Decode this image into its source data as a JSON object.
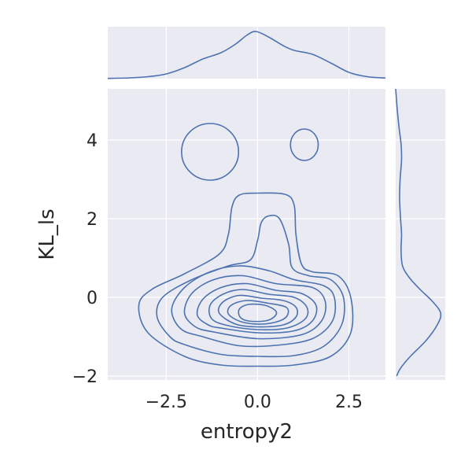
{
  "chart_data": {
    "type": "jointplot-kde",
    "xlabel": "entropy2",
    "ylabel": "KL_ls",
    "xlim": [
      -4.1,
      3.5
    ],
    "ylim": [
      -2.1,
      5.3
    ],
    "grid": true,
    "x_ticks": [
      -2.5,
      0.0,
      2.5
    ],
    "x_tick_labels": [
      "−2.5",
      "0.0",
      "2.5"
    ],
    "y_ticks": [
      -2,
      0,
      2,
      4
    ],
    "y_tick_labels": [
      "−2",
      "0",
      "2",
      "4"
    ],
    "colors": {
      "line": "#4c72b0",
      "panel": "#eaeaf2",
      "grid": "#ffffff"
    },
    "main_contours": [
      {
        "name": "level-1",
        "points": [
          [
            -2.0,
            -1.5
          ],
          [
            -1.0,
            -1.72
          ],
          [
            0.0,
            -1.75
          ],
          [
            1.0,
            -1.72
          ],
          [
            2.0,
            -1.5
          ],
          [
            2.55,
            -0.9
          ],
          [
            2.55,
            0.0
          ],
          [
            2.2,
            0.55
          ],
          [
            1.5,
            0.65
          ],
          [
            1.2,
            0.85
          ],
          [
            1.05,
            1.6
          ],
          [
            1.0,
            2.35
          ],
          [
            0.75,
            2.62
          ],
          [
            0.0,
            2.65
          ],
          [
            -0.5,
            2.6
          ],
          [
            -0.7,
            2.3
          ],
          [
            -0.8,
            1.6
          ],
          [
            -1.05,
            1.1
          ],
          [
            -2.0,
            0.6
          ],
          [
            -2.9,
            0.2
          ],
          [
            -3.25,
            -0.2
          ],
          [
            -3.0,
            -0.9
          ],
          [
            -2.0,
            -1.5
          ]
        ]
      },
      {
        "name": "level-2",
        "points": [
          [
            -2.0,
            -1.2
          ],
          [
            -1.0,
            -1.45
          ],
          [
            0.0,
            -1.5
          ],
          [
            1.0,
            -1.48
          ],
          [
            1.8,
            -1.25
          ],
          [
            2.3,
            -0.7
          ],
          [
            2.35,
            0.0
          ],
          [
            2.0,
            0.45
          ],
          [
            1.4,
            0.55
          ],
          [
            0.95,
            0.75
          ],
          [
            0.85,
            1.35
          ],
          [
            0.6,
            2.0
          ],
          [
            0.3,
            2.07
          ],
          [
            0.1,
            1.9
          ],
          [
            0.0,
            1.45
          ],
          [
            -0.2,
            0.95
          ],
          [
            -0.8,
            0.8
          ],
          [
            -1.8,
            0.45
          ],
          [
            -2.6,
            0.0
          ],
          [
            -2.75,
            -0.5
          ],
          [
            -2.4,
            -1.0
          ],
          [
            -2.0,
            -1.2
          ]
        ]
      },
      {
        "name": "level-3",
        "points": [
          [
            -1.5,
            -1.0
          ],
          [
            -0.5,
            -1.23
          ],
          [
            0.5,
            -1.22
          ],
          [
            1.5,
            -1.05
          ],
          [
            2.05,
            -0.6
          ],
          [
            2.1,
            0.0
          ],
          [
            1.8,
            0.3
          ],
          [
            1.0,
            0.45
          ],
          [
            0.3,
            0.68
          ],
          [
            -0.5,
            0.8
          ],
          [
            -1.3,
            0.65
          ],
          [
            -2.0,
            0.25
          ],
          [
            -2.35,
            -0.3
          ],
          [
            -2.1,
            -0.8
          ],
          [
            -1.5,
            -1.0
          ]
        ]
      },
      {
        "name": "level-4",
        "points": [
          [
            -1.2,
            -0.88
          ],
          [
            0.0,
            -1.05
          ],
          [
            1.2,
            -0.95
          ],
          [
            1.75,
            -0.6
          ],
          [
            1.85,
            -0.1
          ],
          [
            1.5,
            0.25
          ],
          [
            0.5,
            0.35
          ],
          [
            -0.4,
            0.55
          ],
          [
            -1.2,
            0.45
          ],
          [
            -1.8,
            0.1
          ],
          [
            -2.0,
            -0.4
          ],
          [
            -1.7,
            -0.75
          ],
          [
            -1.2,
            -0.88
          ]
        ]
      },
      {
        "name": "level-5",
        "points": [
          [
            -1.0,
            -0.78
          ],
          [
            0.0,
            -0.9
          ],
          [
            1.0,
            -0.85
          ],
          [
            1.5,
            -0.6
          ],
          [
            1.6,
            -0.2
          ],
          [
            1.2,
            0.1
          ],
          [
            0.5,
            0.18
          ],
          [
            -0.3,
            0.35
          ],
          [
            -1.0,
            0.25
          ],
          [
            -1.5,
            -0.05
          ],
          [
            -1.65,
            -0.45
          ],
          [
            -1.35,
            -0.7
          ],
          [
            -1.0,
            -0.78
          ]
        ]
      },
      {
        "name": "level-6",
        "points": [
          [
            -0.8,
            -0.72
          ],
          [
            0.0,
            -0.82
          ],
          [
            0.8,
            -0.78
          ],
          [
            1.3,
            -0.55
          ],
          [
            1.35,
            -0.25
          ],
          [
            1.0,
            0.0
          ],
          [
            0.3,
            0.08
          ],
          [
            -0.4,
            0.2
          ],
          [
            -0.95,
            0.08
          ],
          [
            -1.3,
            -0.2
          ],
          [
            -1.25,
            -0.55
          ],
          [
            -0.8,
            -0.72
          ]
        ]
      },
      {
        "name": "level-7",
        "points": [
          [
            -0.6,
            -0.68
          ],
          [
            0.0,
            -0.75
          ],
          [
            0.7,
            -0.7
          ],
          [
            1.05,
            -0.5
          ],
          [
            1.05,
            -0.25
          ],
          [
            0.7,
            -0.08
          ],
          [
            0.1,
            -0.02
          ],
          [
            -0.5,
            0.05
          ],
          [
            -0.95,
            -0.12
          ],
          [
            -1.05,
            -0.4
          ],
          [
            -0.6,
            -0.68
          ]
        ]
      },
      {
        "name": "level-8",
        "points": [
          [
            -0.45,
            -0.62
          ],
          [
            0.1,
            -0.68
          ],
          [
            0.6,
            -0.6
          ],
          [
            0.82,
            -0.45
          ],
          [
            0.78,
            -0.25
          ],
          [
            0.3,
            -0.15
          ],
          [
            -0.3,
            -0.08
          ],
          [
            -0.72,
            -0.2
          ],
          [
            -0.8,
            -0.42
          ],
          [
            -0.45,
            -0.62
          ]
        ]
      },
      {
        "name": "level-9",
        "points": [
          [
            -0.25,
            -0.6
          ],
          [
            0.2,
            -0.6
          ],
          [
            0.45,
            -0.5
          ],
          [
            0.5,
            -0.35
          ],
          [
            0.2,
            -0.2
          ],
          [
            -0.25,
            -0.18
          ],
          [
            -0.5,
            -0.3
          ],
          [
            -0.48,
            -0.5
          ],
          [
            -0.25,
            -0.6
          ]
        ]
      },
      {
        "name": "island-left",
        "center": [
          -1.3,
          3.7
        ],
        "rx": 0.78,
        "ry": 0.72
      },
      {
        "name": "island-right",
        "center": [
          1.28,
          3.88
        ],
        "rx": 0.38,
        "ry": 0.4
      }
    ],
    "top_marginal": {
      "name": "entropy2-density",
      "points": [
        [
          -4.1,
          0.003
        ],
        [
          -3.5,
          0.01
        ],
        [
          -3.0,
          0.025
        ],
        [
          -2.5,
          0.06
        ],
        [
          -2.0,
          0.14
        ],
        [
          -1.5,
          0.25
        ],
        [
          -1.0,
          0.33
        ],
        [
          -0.6,
          0.44
        ],
        [
          -0.3,
          0.55
        ],
        [
          -0.05,
          0.6
        ],
        [
          0.3,
          0.53
        ],
        [
          0.7,
          0.42
        ],
        [
          1.0,
          0.36
        ],
        [
          1.5,
          0.31
        ],
        [
          2.0,
          0.2
        ],
        [
          2.5,
          0.08
        ],
        [
          3.0,
          0.025
        ],
        [
          3.5,
          0.008
        ]
      ],
      "ymax": 0.62
    },
    "right_marginal": {
      "name": "KL_ls-density",
      "points": [
        [
          -2.0,
          0.02
        ],
        [
          -1.8,
          0.1
        ],
        [
          -1.5,
          0.3
        ],
        [
          -1.1,
          0.62
        ],
        [
          -0.7,
          0.85
        ],
        [
          -0.4,
          0.92
        ],
        [
          -0.1,
          0.75
        ],
        [
          0.2,
          0.5
        ],
        [
          0.5,
          0.28
        ],
        [
          0.8,
          0.14
        ],
        [
          1.2,
          0.11
        ],
        [
          1.6,
          0.12
        ],
        [
          2.0,
          0.1
        ],
        [
          2.5,
          0.08
        ],
        [
          3.0,
          0.09
        ],
        [
          3.5,
          0.12
        ],
        [
          3.9,
          0.11
        ],
        [
          4.3,
          0.07
        ],
        [
          4.8,
          0.03
        ],
        [
          5.3,
          0.0
        ]
      ],
      "xmax": 0.95
    }
  }
}
